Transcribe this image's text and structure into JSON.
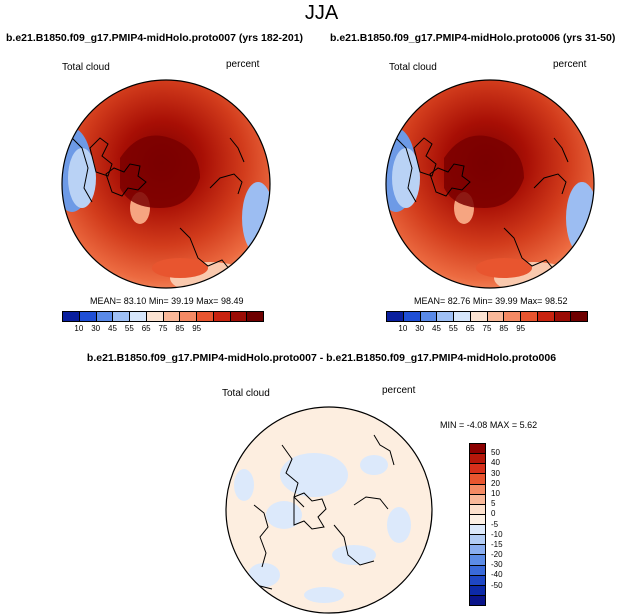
{
  "title": "JJA",
  "panels": [
    {
      "case": "b.e21.B1850.f09_g17.PMIP4-midHolo.proto007 (yrs 182-201)",
      "variable": "Total cloud",
      "units": "percent",
      "stats": {
        "mean_label": "MEAN=",
        "mean": "83.10",
        "min_label": "Min=",
        "min": "39.19",
        "max_label": "Max=",
        "max": "98.49"
      }
    },
    {
      "case": "b.e21.B1850.f09_g17.PMIP4-midHolo.proto006 (yrs 31-50)",
      "variable": "Total cloud",
      "units": "percent",
      "stats": {
        "mean_label": "MEAN=",
        "mean": "82.76",
        "min_label": "Min=",
        "min": "39.99",
        "max_label": "Max=",
        "max": "98.52"
      }
    }
  ],
  "diff_panel": {
    "title": "b.e21.B1850.f09_g17.PMIP4-midHolo.proto007 - b.e21.B1850.f09_g17.PMIP4-midHolo.proto006",
    "variable": "Total cloud",
    "units": "percent",
    "min_label": "MIN =",
    "min": "-4.08",
    "max_label": "MAX =",
    "max": "5.62"
  },
  "colorbar": {
    "ticks": [
      "10",
      "30",
      "45",
      "55",
      "65",
      "75",
      "85",
      "95"
    ],
    "colors": [
      "#0a1f9e",
      "#1f4fd6",
      "#5a8ae8",
      "#9fc0f5",
      "#d6e6fb",
      "#fbe3d2",
      "#f9b899",
      "#f48a64",
      "#e8552f",
      "#c8230f",
      "#9b0c05",
      "#6e0000"
    ]
  },
  "diff_colorbar": {
    "ticks": [
      "50",
      "40",
      "30",
      "20",
      "10",
      "5",
      "0",
      "-5",
      "-10",
      "-15",
      "-20",
      "-30",
      "-40",
      "-50"
    ],
    "colors": [
      "#8b0000",
      "#b5170a",
      "#d6301b",
      "#e8552f",
      "#f48a64",
      "#f9b899",
      "#fde0cc",
      "#fdf0e4",
      "#dce9fb",
      "#b3cdf5",
      "#8aaef0",
      "#5c8ce6",
      "#3a6ad9",
      "#1f47c4",
      "#0d2aa8",
      "#0a148a"
    ]
  }
}
